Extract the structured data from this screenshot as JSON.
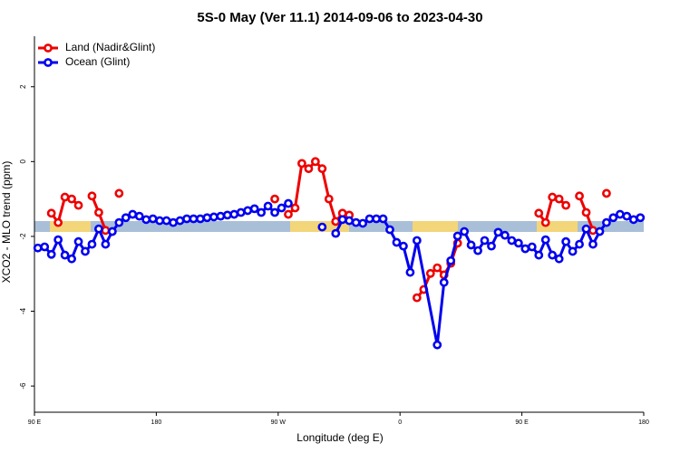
{
  "chart_data": {
    "type": "line",
    "title": "5S-0 May (Ver 11.1)   2014-09-06 to 2023-04-30",
    "xlabel": "Longitude (deg E)",
    "ylabel": "XCO2 - MLO trend (ppm)",
    "xlim": [
      90,
      540
    ],
    "ylim": [
      -6.7,
      3.35
    ],
    "xticks": [
      {
        "value": 90,
        "label": "90 E"
      },
      {
        "value": 180,
        "label": "180"
      },
      {
        "value": 270,
        "label": "90 W"
      },
      {
        "value": 360,
        "label": "0"
      },
      {
        "value": 450,
        "label": "90 E"
      },
      {
        "value": 540,
        "label": "180"
      }
    ],
    "yticks": [
      -6,
      -4,
      -2,
      0,
      2
    ],
    "legend": "top-left",
    "series": [
      {
        "name": "Land (Nadir&Glint)",
        "color": "#ee0000",
        "x": [
          102.5,
          107.5,
          112.5,
          117.5,
          122.5,
          127.5,
          132.5,
          137.5,
          142.5,
          147.5,
          152.5,
          157.5,
          267.5,
          272.5,
          277.5,
          282.5,
          287.5,
          292.5,
          297.5,
          302.5,
          307.5,
          312.5,
          317.5,
          322.5,
          327.5,
          372.5,
          377.5,
          382.5,
          387.5,
          392.5,
          397.5,
          402.5,
          407.5,
          462.5,
          467.5,
          472.5,
          477.5,
          482.5,
          487.5,
          492.5,
          497.5,
          502.5,
          507.5,
          512.5
        ],
        "values": [
          -1.38,
          -1.63,
          -0.95,
          -1.0,
          -1.17,
          null,
          -0.92,
          -1.36,
          -1.84,
          null,
          -0.85,
          null,
          -1.0,
          null,
          -1.41,
          -1.24,
          -0.05,
          -0.19,
          0.0,
          -0.19,
          -1.0,
          -1.6,
          -1.38,
          -1.43,
          null,
          -3.64,
          -3.42,
          -2.99,
          -2.84,
          -3.03,
          -2.72,
          -2.18,
          null,
          -1.38,
          -1.63,
          -0.95,
          -1.0,
          -1.17,
          null,
          -0.92,
          -1.36,
          -1.84,
          null,
          -0.85
        ]
      },
      {
        "name": "Ocean (Glint)",
        "color": "#0000ee",
        "x": [
          92.5,
          97.5,
          102.5,
          107.5,
          112.5,
          117.5,
          122.5,
          127.5,
          132.5,
          137.5,
          142.5,
          147.5,
          152.5,
          157.5,
          162.5,
          167.5,
          172.5,
          177.5,
          182.5,
          187.5,
          192.5,
          197.5,
          202.5,
          207.5,
          212.5,
          217.5,
          222.5,
          227.5,
          232.5,
          237.5,
          242.5,
          247.5,
          252.5,
          257.5,
          262.5,
          267.5,
          272.5,
          277.5,
          282.5,
          302.5,
          307.5,
          312.5,
          317.5,
          322.5,
          327.5,
          332.5,
          337.5,
          342.5,
          347.5,
          352.5,
          357.5,
          362.5,
          367.5,
          372.5,
          387.5,
          392.5,
          397.5,
          402.5,
          407.5,
          412.5,
          417.5,
          422.5,
          427.5,
          432.5,
          437.5,
          442.5,
          447.5,
          452.5,
          457.5,
          462.5,
          467.5,
          472.5,
          477.5,
          482.5,
          487.5,
          492.5,
          497.5,
          502.5,
          507.5,
          512.5,
          517.5,
          522.5,
          527.5,
          532.5,
          537.5
        ],
        "values": [
          -2.31,
          -2.28,
          -2.48,
          -2.09,
          -2.5,
          -2.6,
          -2.14,
          -2.4,
          -2.21,
          -1.8,
          -2.21,
          -1.87,
          -1.63,
          -1.5,
          -1.41,
          -1.46,
          -1.55,
          -1.53,
          -1.58,
          -1.58,
          -1.63,
          -1.58,
          -1.53,
          -1.53,
          -1.53,
          -1.5,
          -1.48,
          -1.46,
          -1.43,
          -1.41,
          -1.36,
          -1.31,
          -1.26,
          -1.36,
          -1.19,
          -1.36,
          -1.24,
          -1.12,
          null,
          -1.75,
          null,
          -1.92,
          -1.55,
          -1.58,
          -1.63,
          -1.65,
          -1.53,
          -1.53,
          -1.53,
          -1.82,
          -2.16,
          -2.26,
          -2.96,
          -2.11,
          -4.9,
          -3.23,
          -2.65,
          -1.99,
          -1.87,
          -2.23,
          -2.38,
          -2.11,
          -2.26,
          -1.89,
          -1.97,
          -2.11,
          -2.18,
          -2.33,
          -2.28,
          -2.5,
          -2.09,
          -2.5,
          -2.6,
          -2.14,
          -2.4,
          -2.21,
          -1.8,
          -2.21,
          -1.87,
          -1.63,
          -1.5,
          -1.41,
          -1.46,
          -1.55,
          -1.5
        ]
      }
    ]
  }
}
